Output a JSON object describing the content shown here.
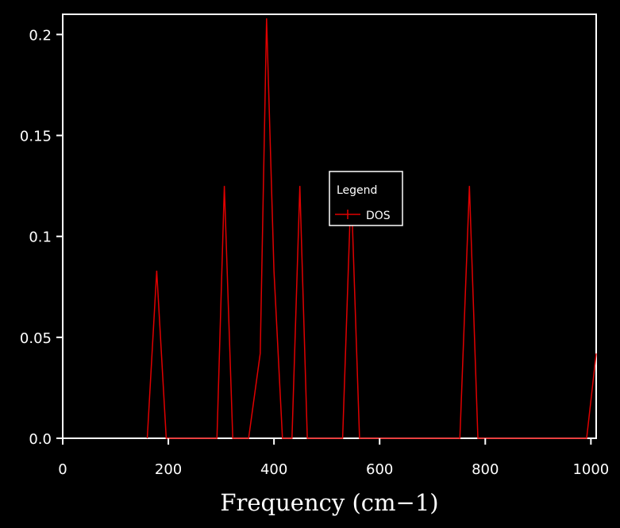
{
  "chart_data": {
    "type": "line",
    "xlabel": "Frequency (cm−1)",
    "ylabel": "",
    "xlim": [
      0,
      1010
    ],
    "ylim": [
      0,
      0.21
    ],
    "xticks": [
      0,
      200,
      400,
      600,
      800,
      1000
    ],
    "xtick_labels": [
      "0",
      "200",
      "400",
      "600",
      "800",
      "1000"
    ],
    "yticks": [
      0,
      0.05,
      0.1,
      0.15,
      0.2
    ],
    "ytick_labels": [
      "0.0",
      "0.05",
      "0.1",
      "0.15",
      "0.2"
    ],
    "legend": {
      "title": "Legend",
      "position": "center"
    },
    "grid": false,
    "series": [
      {
        "name": "DOS",
        "color": "#e00000",
        "x": [
          160,
          178,
          196,
          292,
          306,
          322,
          352,
          374,
          386,
          400,
          416,
          434,
          449,
          463,
          530,
          546,
          562,
          752,
          770,
          786,
          992,
          1010
        ],
        "y": [
          0,
          0.083,
          0,
          0,
          0.125,
          0,
          0,
          0.042,
          0.208,
          0.083,
          0,
          0,
          0.125,
          0,
          0,
          0.125,
          0,
          0,
          0.125,
          0,
          0,
          0.042
        ]
      }
    ]
  }
}
